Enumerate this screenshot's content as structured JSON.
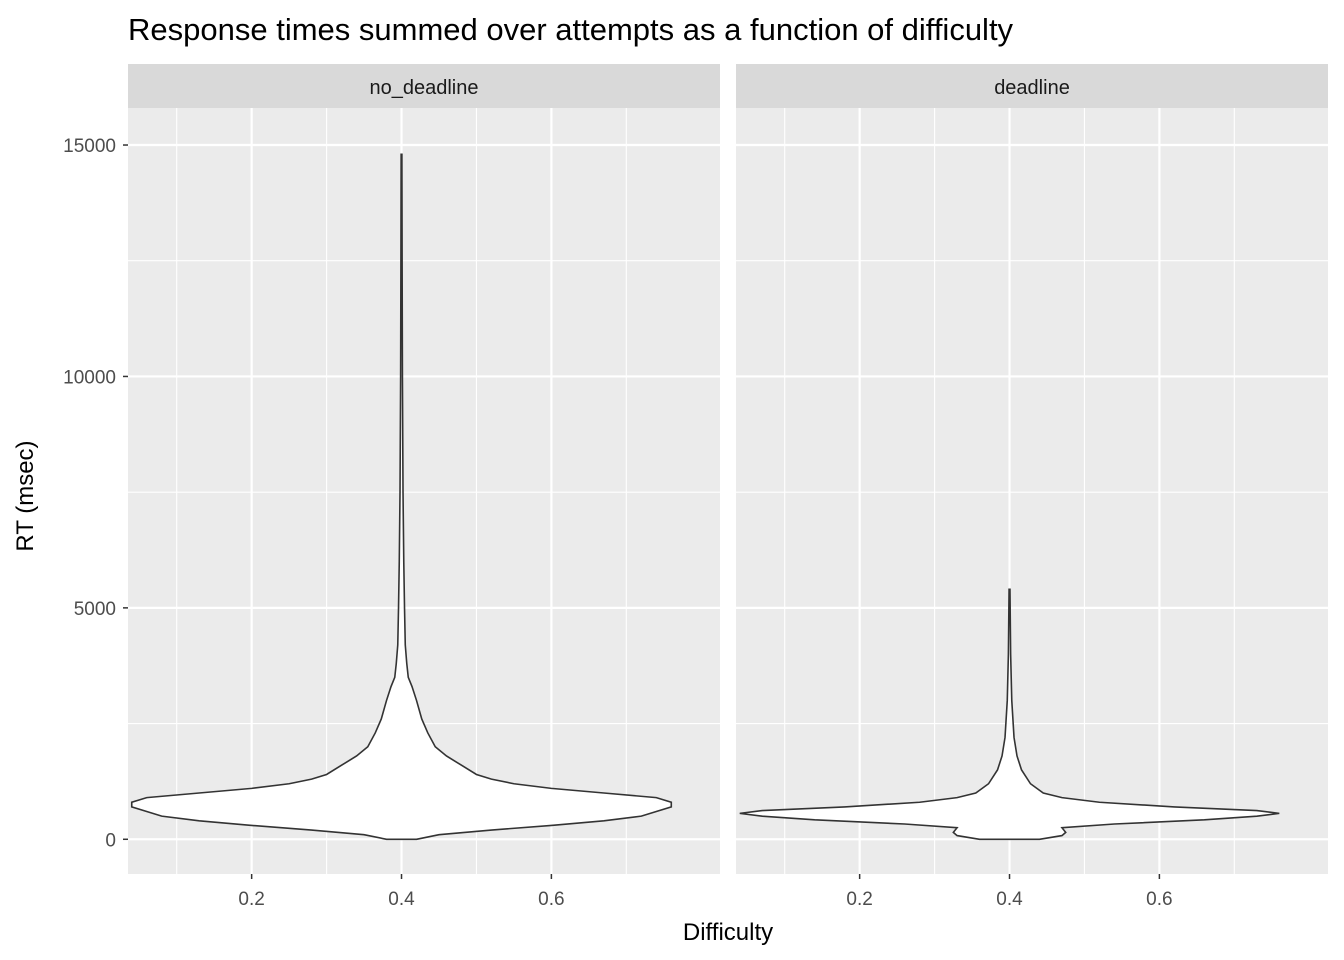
{
  "chart_data": {
    "type": "violin",
    "title": "Response times summed over attempts as a function of difficulty",
    "xlabel": "Difficulty",
    "ylabel": "RT (msec)",
    "x_ticks": [
      "0.2",
      "0.4",
      "0.6"
    ],
    "x_tick_values": [
      0.2,
      0.4,
      0.6
    ],
    "y_ticks": [
      "0",
      "5000",
      "10000",
      "15000"
    ],
    "y_tick_values": [
      0,
      5000,
      10000,
      15000
    ],
    "xlim": [
      0.035,
      0.825
    ],
    "ylim": [
      -750,
      15800
    ],
    "grid": true,
    "facets": [
      {
        "name": "no_deadline",
        "x_center": 0.4,
        "max_rt": 14800,
        "profile": [
          {
            "y": 0,
            "hw": 0.02
          },
          {
            "y": 100,
            "hw": 0.05
          },
          {
            "y": 200,
            "hw": 0.12
          },
          {
            "y": 300,
            "hw": 0.2
          },
          {
            "y": 400,
            "hw": 0.27
          },
          {
            "y": 500,
            "hw": 0.32
          },
          {
            "y": 600,
            "hw": 0.34
          },
          {
            "y": 700,
            "hw": 0.36
          },
          {
            "y": 800,
            "hw": 0.36
          },
          {
            "y": 900,
            "hw": 0.34
          },
          {
            "y": 1000,
            "hw": 0.27
          },
          {
            "y": 1100,
            "hw": 0.2
          },
          {
            "y": 1200,
            "hw": 0.15
          },
          {
            "y": 1300,
            "hw": 0.12
          },
          {
            "y": 1400,
            "hw": 0.1
          },
          {
            "y": 1600,
            "hw": 0.08
          },
          {
            "y": 1800,
            "hw": 0.06
          },
          {
            "y": 2000,
            "hw": 0.045
          },
          {
            "y": 2300,
            "hw": 0.035
          },
          {
            "y": 2600,
            "hw": 0.027
          },
          {
            "y": 3000,
            "hw": 0.02
          },
          {
            "y": 3300,
            "hw": 0.014
          },
          {
            "y": 3500,
            "hw": 0.009
          },
          {
            "y": 3800,
            "hw": 0.007
          },
          {
            "y": 4200,
            "hw": 0.005
          },
          {
            "y": 5000,
            "hw": 0.004
          },
          {
            "y": 6000,
            "hw": 0.003
          },
          {
            "y": 7500,
            "hw": 0.002
          },
          {
            "y": 10000,
            "hw": 0.0012
          },
          {
            "y": 12500,
            "hw": 0.0008
          },
          {
            "y": 14800,
            "hw": 0.0005
          }
        ]
      },
      {
        "name": "deadline",
        "x_center": 0.4,
        "max_rt": 5400,
        "profile": [
          {
            "y": 0,
            "hw": 0.04
          },
          {
            "y": 80,
            "hw": 0.07
          },
          {
            "y": 150,
            "hw": 0.075
          },
          {
            "y": 250,
            "hw": 0.07
          },
          {
            "y": 330,
            "hw": 0.14
          },
          {
            "y": 420,
            "hw": 0.26
          },
          {
            "y": 500,
            "hw": 0.33
          },
          {
            "y": 560,
            "hw": 0.36
          },
          {
            "y": 620,
            "hw": 0.33
          },
          {
            "y": 700,
            "hw": 0.22
          },
          {
            "y": 800,
            "hw": 0.12
          },
          {
            "y": 900,
            "hw": 0.07
          },
          {
            "y": 1000,
            "hw": 0.045
          },
          {
            "y": 1200,
            "hw": 0.028
          },
          {
            "y": 1500,
            "hw": 0.016
          },
          {
            "y": 1800,
            "hw": 0.01
          },
          {
            "y": 2200,
            "hw": 0.006
          },
          {
            "y": 3000,
            "hw": 0.003
          },
          {
            "y": 4000,
            "hw": 0.0015
          },
          {
            "y": 5400,
            "hw": 0.0006
          }
        ]
      }
    ]
  }
}
